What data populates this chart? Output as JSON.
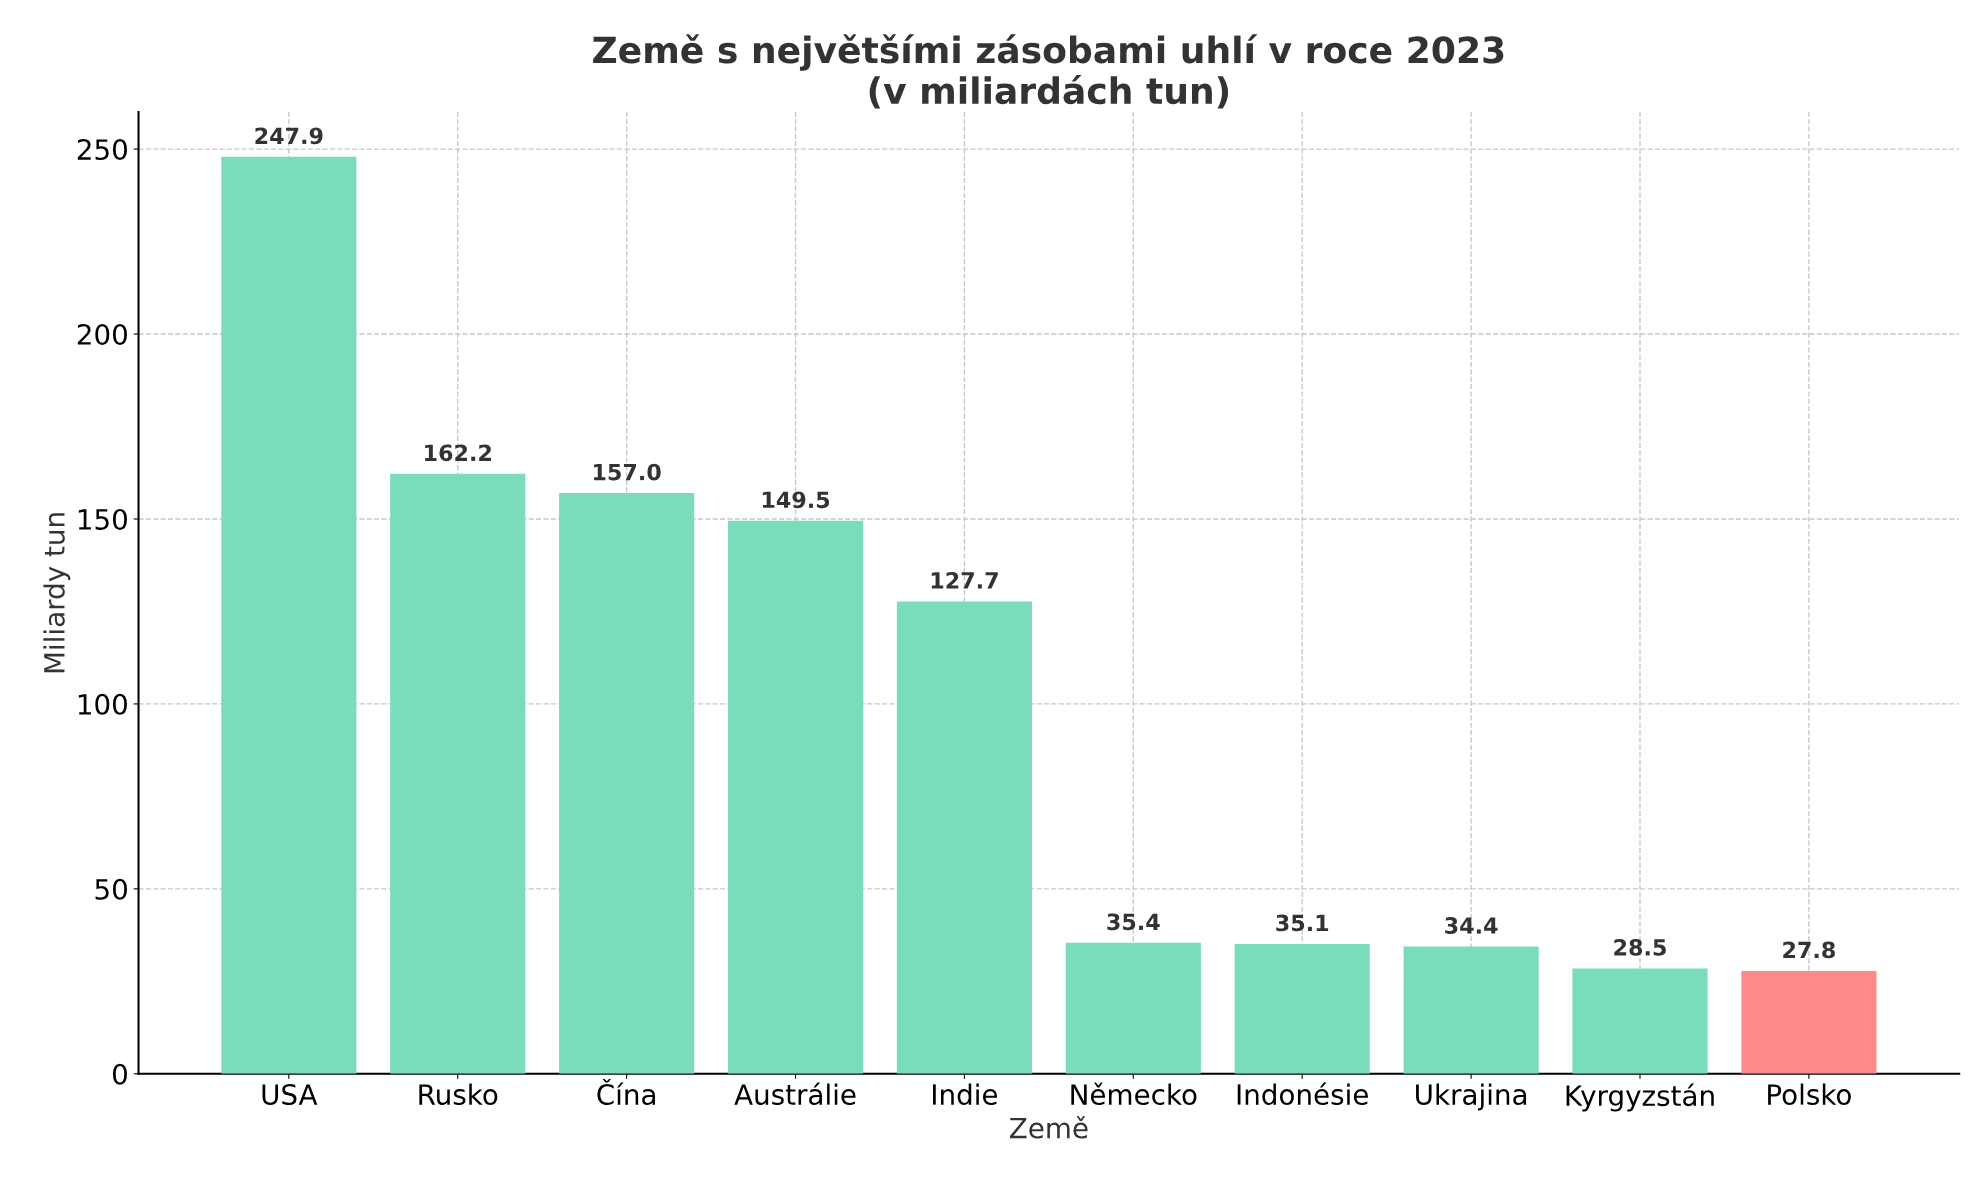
{
  "chart_data": {
    "type": "bar",
    "title": "Země s největšími zásobami uhlí v roce 2023\n(v miliardách tun)",
    "xlabel": "Země",
    "ylabel": "Miliardy tun",
    "categories": [
      "USA",
      "Rusko",
      "Čína",
      "Austrálie",
      "Indie",
      "Německo",
      "Indonésie",
      "Ukrajina",
      "Kyrgyzstán",
      "Polsko"
    ],
    "values": [
      247.9,
      162.2,
      157.0,
      149.5,
      127.7,
      35.4,
      35.1,
      34.4,
      28.5,
      27.8
    ],
    "colors": [
      "#79dcba",
      "#79dcba",
      "#79dcba",
      "#79dcba",
      "#79dcba",
      "#79dcba",
      "#79dcba",
      "#79dcba",
      "#79dcba",
      "#ff8888"
    ],
    "ylim": [
      0,
      260
    ],
    "yticks": [
      0,
      50,
      100,
      150,
      200,
      250
    ],
    "grid": true,
    "value_labels": [
      "247.9",
      "162.2",
      "157.0",
      "149.5",
      "127.7",
      "35.4",
      "35.1",
      "34.4",
      "28.5",
      "27.8"
    ]
  }
}
